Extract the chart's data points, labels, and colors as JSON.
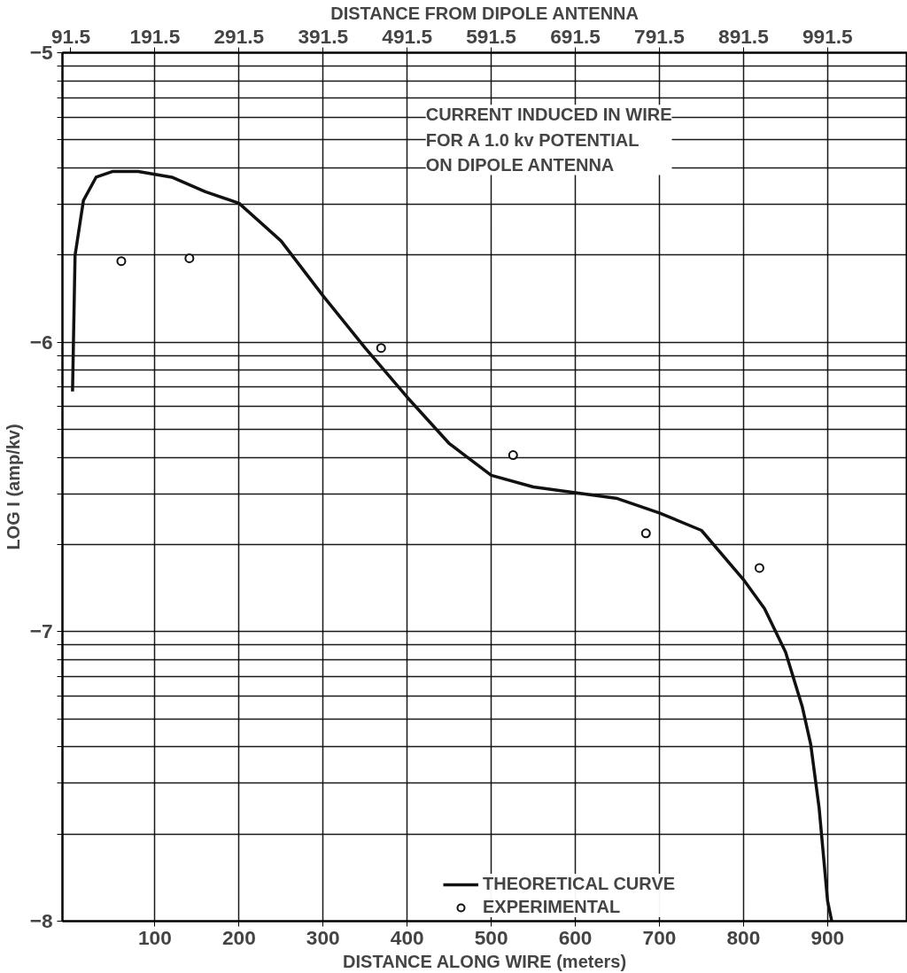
{
  "chart_data": {
    "type": "line",
    "xlabel": "DISTANCE ALONG WIRE (meters)",
    "x2label": "DISTANCE FROM DIPOLE ANTENNA",
    "ylabel": "LOG I (amp/kv)",
    "annotations": [
      "CURRENT INDUCED IN WIRE FOR A 1.0 kv POTENTIAL ON DIPOLE ANTENNA"
    ],
    "xlim": [
      -10,
      995
    ],
    "x2lim": [
      81.5,
      1086.5
    ],
    "xticks": [
      100,
      200,
      300,
      400,
      500,
      600,
      700,
      800,
      900
    ],
    "x2ticks": [
      91.5,
      191.5,
      291.5,
      391.5,
      491.5,
      591.5,
      691.5,
      791.5,
      891.5,
      991.5
    ],
    "ylim": [
      -8,
      -5
    ],
    "yticks": [
      -8,
      {
        "value": -7.699,
        "label": null
      },
      {
        "value": -7.523,
        "label": null
      },
      {
        "value": -7.398,
        "label": null
      },
      {
        "value": -7.301,
        "label": null
      },
      {
        "value": -7.222,
        "label": null
      },
      {
        "value": -7.155,
        "label": null
      },
      {
        "value": -7.097,
        "label": null
      },
      {
        "value": -7.046,
        "label": null
      },
      -7,
      {
        "value": -6.699,
        "label": null
      },
      {
        "value": -6.523,
        "label": null
      },
      {
        "value": -6.398,
        "label": null
      },
      {
        "value": -6.301,
        "label": null
      },
      {
        "value": -6.222,
        "label": null
      },
      {
        "value": -6.155,
        "label": null
      },
      {
        "value": -6.097,
        "label": null
      },
      {
        "value": -6.046,
        "label": null
      },
      -6,
      {
        "value": -5.699,
        "label": null
      },
      {
        "value": -5.523,
        "label": null
      },
      {
        "value": -5.398,
        "label": null
      },
      {
        "value": -5.301,
        "label": null
      },
      {
        "value": -5.222,
        "label": null
      },
      {
        "value": -5.155,
        "label": null
      },
      {
        "value": -5.097,
        "label": null
      },
      {
        "value": -5.046,
        "label": null
      },
      -5
    ],
    "grid": true,
    "legend": "bottom right",
    "series": [
      {
        "name": "THEORETICAL CURVE",
        "color": "#111111",
        "marker": "none",
        "line_style": "solid",
        "x": [
          2,
          5,
          15,
          30,
          50,
          80,
          120,
          160,
          200,
          250,
          300,
          350,
          400,
          450,
          500,
          550,
          600,
          650,
          700,
          750,
          800,
          825,
          850,
          870,
          880,
          890,
          900,
          905
        ],
        "values": [
          -6.17,
          -5.7,
          -5.51,
          -5.43,
          -5.41,
          -5.41,
          -5.43,
          -5.48,
          -5.52,
          -5.65,
          -5.84,
          -6.02,
          -6.19,
          -6.35,
          -6.46,
          -6.5,
          -6.52,
          -6.54,
          -6.59,
          -6.65,
          -6.82,
          -6.92,
          -7.07,
          -7.26,
          -7.39,
          -7.61,
          -7.93,
          -8.0
        ]
      },
      {
        "name": "EXPERIMENTAL",
        "type": "scatter",
        "color": "#111111",
        "marker": "circle",
        "x": [
          60,
          141,
          369,
          526,
          684,
          819
        ],
        "values": [
          -5.72,
          -5.71,
          -6.02,
          -6.39,
          -6.66,
          -6.78
        ]
      }
    ]
  }
}
